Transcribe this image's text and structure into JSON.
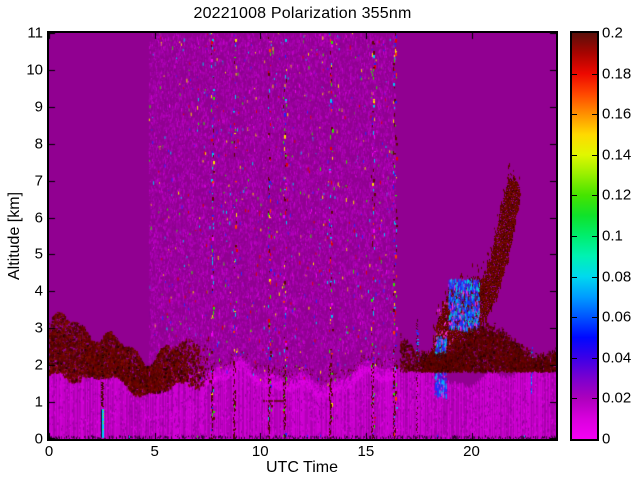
{
  "chart_data": {
    "type": "heatmap",
    "title": "20221008 Polarization 355nm",
    "xlabel": "UTC Time",
    "ylabel": "Altitude [km]",
    "x_range": [
      0,
      24
    ],
    "y_range": [
      0,
      11
    ],
    "x_ticks": [
      0,
      5,
      10,
      15,
      20
    ],
    "x_tick_labels": [
      "0",
      "5",
      "10",
      "15",
      "20"
    ],
    "y_ticks": [
      0,
      1,
      2,
      3,
      4,
      5,
      6,
      7,
      8,
      9,
      10,
      11
    ],
    "y_tick_labels": [
      "0",
      "1",
      "2",
      "3",
      "4",
      "5",
      "6",
      "7",
      "8",
      "9",
      "10",
      "11"
    ],
    "grid": false,
    "colorbar": {
      "min": 0,
      "max": 0.2,
      "tick_values": [
        0,
        0.02,
        0.04,
        0.06,
        0.08,
        0.1,
        0.12,
        0.14,
        0.16,
        0.18,
        0.2
      ],
      "tick_labels": [
        "0",
        "0.02",
        "0.04",
        "0.06",
        "0.08",
        "0.1",
        "0.12",
        "0.14",
        "0.16",
        "0.18",
        "0.2"
      ],
      "colormap_stops": [
        {
          "v": 0.0,
          "c": "#f400f4"
        },
        {
          "v": 0.01,
          "c": "#d900dd"
        },
        {
          "v": 0.02,
          "c": "#ad00bd"
        },
        {
          "v": 0.03,
          "c": "#7a00cf"
        },
        {
          "v": 0.04,
          "c": "#3c00e8"
        },
        {
          "v": 0.05,
          "c": "#0008ff"
        },
        {
          "v": 0.06,
          "c": "#0053ff"
        },
        {
          "v": 0.07,
          "c": "#009cff"
        },
        {
          "v": 0.08,
          "c": "#00d9ee"
        },
        {
          "v": 0.09,
          "c": "#00f2b4"
        },
        {
          "v": 0.1,
          "c": "#00ee6e"
        },
        {
          "v": 0.11,
          "c": "#0fe22b"
        },
        {
          "v": 0.12,
          "c": "#45e400"
        },
        {
          "v": 0.13,
          "c": "#96ef00"
        },
        {
          "v": 0.14,
          "c": "#e0f700"
        },
        {
          "v": 0.15,
          "c": "#ffd900"
        },
        {
          "v": 0.16,
          "c": "#ff9100"
        },
        {
          "v": 0.17,
          "c": "#ff4700"
        },
        {
          "v": 0.18,
          "c": "#ed0800"
        },
        {
          "v": 0.19,
          "c": "#a80400"
        },
        {
          "v": 0.2,
          "c": "#5a0f0a"
        }
      ]
    },
    "features": {
      "background_color": "#910091",
      "band_colors": [
        "#b400b8",
        "#c400c8",
        "#aa00ae",
        "#ce00d2"
      ],
      "noise_region": {
        "t0": 4.72,
        "t1": 16.38
      },
      "stripe_hours": [
        7.72,
        8.78,
        10.42,
        11.15,
        13.32,
        15.32,
        16.35
      ],
      "aerosol_left": {
        "t0": 0,
        "t1": 7.75,
        "z_base": 1.9,
        "z_top_max": 3.3
      },
      "boundary_layer_top_km": 1.8,
      "streaks": [
        {
          "t": 2.55,
          "z0": 0.05,
          "z1": 2.62,
          "core": "cyan"
        },
        {
          "t": 17.45,
          "z0": 0.0,
          "z1": 3.25,
          "core": "blue-top"
        },
        {
          "t": 22.85,
          "z0": 1.25,
          "z1": 2.5,
          "core": "blue"
        }
      ],
      "plume": [
        [
          17.95,
          2.05,
          2.25
        ],
        [
          18.2,
          2.1,
          2.7
        ],
        [
          18.5,
          2.2,
          3.4
        ],
        [
          18.8,
          2.35,
          3.95
        ],
        [
          19.1,
          2.5,
          4.0
        ],
        [
          19.4,
          2.6,
          4.05
        ],
        [
          19.7,
          2.75,
          4.1
        ],
        [
          20.0,
          2.6,
          4.25
        ],
        [
          20.3,
          2.9,
          4.35
        ],
        [
          20.6,
          3.2,
          4.5
        ],
        [
          20.9,
          3.5,
          4.95
        ],
        [
          21.2,
          3.85,
          5.8
        ],
        [
          21.45,
          4.3,
          6.5
        ],
        [
          21.7,
          4.8,
          7.05
        ],
        [
          21.95,
          5.5,
          7.1
        ],
        [
          22.15,
          6.1,
          6.95
        ],
        [
          22.3,
          6.5,
          6.8
        ]
      ],
      "blue_patches": [
        {
          "t0": 18.25,
          "t1": 18.8,
          "z0": 1.2,
          "z1": 2.8
        },
        {
          "t0": 18.9,
          "t1": 20.35,
          "z0": 3.0,
          "z1": 4.35
        }
      ],
      "base_layer_right": {
        "t0": 16.6,
        "t1": 24,
        "z0": 1.85,
        "z1": 3.1
      },
      "ridge_dash": {
        "t0": 10.15,
        "t1": 11.2,
        "z": 1.05
      }
    }
  }
}
